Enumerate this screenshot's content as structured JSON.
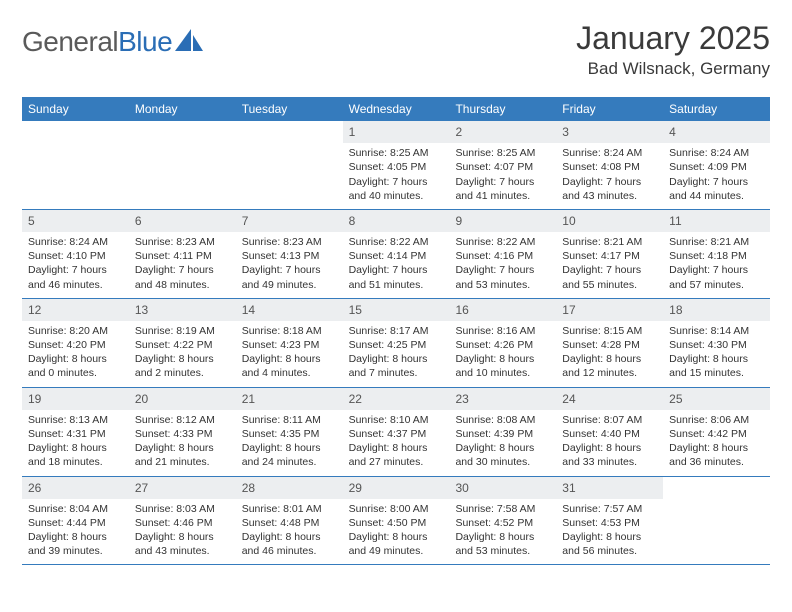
{
  "logo": {
    "g": "General",
    "b": "Blue"
  },
  "title": "January 2025",
  "location": "Bad Wilsnack, Germany",
  "colors": {
    "header_bg": "#357bbd",
    "header_text": "#ffffff",
    "daynum_bg": "#eceef0",
    "daynum_text": "#555555",
    "border": "#357bbd",
    "text": "#333333",
    "logo_gray": "#5a5a5a",
    "logo_blue": "#2a6db5"
  },
  "typography": {
    "title_fontsize": 32,
    "location_fontsize": 17,
    "weekday_fontsize": 12,
    "daynum_fontsize": 12,
    "body_fontsize": 10.5
  },
  "weekdays": [
    "Sunday",
    "Monday",
    "Tuesday",
    "Wednesday",
    "Thursday",
    "Friday",
    "Saturday"
  ],
  "weeks": [
    [
      {
        "n": "",
        "sr": "",
        "ss": "",
        "d": ""
      },
      {
        "n": "",
        "sr": "",
        "ss": "",
        "d": ""
      },
      {
        "n": "",
        "sr": "",
        "ss": "",
        "d": ""
      },
      {
        "n": "1",
        "sr": "Sunrise: 8:25 AM",
        "ss": "Sunset: 4:05 PM",
        "d": "Daylight: 7 hours and 40 minutes."
      },
      {
        "n": "2",
        "sr": "Sunrise: 8:25 AM",
        "ss": "Sunset: 4:07 PM",
        "d": "Daylight: 7 hours and 41 minutes."
      },
      {
        "n": "3",
        "sr": "Sunrise: 8:24 AM",
        "ss": "Sunset: 4:08 PM",
        "d": "Daylight: 7 hours and 43 minutes."
      },
      {
        "n": "4",
        "sr": "Sunrise: 8:24 AM",
        "ss": "Sunset: 4:09 PM",
        "d": "Daylight: 7 hours and 44 minutes."
      }
    ],
    [
      {
        "n": "5",
        "sr": "Sunrise: 8:24 AM",
        "ss": "Sunset: 4:10 PM",
        "d": "Daylight: 7 hours and 46 minutes."
      },
      {
        "n": "6",
        "sr": "Sunrise: 8:23 AM",
        "ss": "Sunset: 4:11 PM",
        "d": "Daylight: 7 hours and 48 minutes."
      },
      {
        "n": "7",
        "sr": "Sunrise: 8:23 AM",
        "ss": "Sunset: 4:13 PM",
        "d": "Daylight: 7 hours and 49 minutes."
      },
      {
        "n": "8",
        "sr": "Sunrise: 8:22 AM",
        "ss": "Sunset: 4:14 PM",
        "d": "Daylight: 7 hours and 51 minutes."
      },
      {
        "n": "9",
        "sr": "Sunrise: 8:22 AM",
        "ss": "Sunset: 4:16 PM",
        "d": "Daylight: 7 hours and 53 minutes."
      },
      {
        "n": "10",
        "sr": "Sunrise: 8:21 AM",
        "ss": "Sunset: 4:17 PM",
        "d": "Daylight: 7 hours and 55 minutes."
      },
      {
        "n": "11",
        "sr": "Sunrise: 8:21 AM",
        "ss": "Sunset: 4:18 PM",
        "d": "Daylight: 7 hours and 57 minutes."
      }
    ],
    [
      {
        "n": "12",
        "sr": "Sunrise: 8:20 AM",
        "ss": "Sunset: 4:20 PM",
        "d": "Daylight: 8 hours and 0 minutes."
      },
      {
        "n": "13",
        "sr": "Sunrise: 8:19 AM",
        "ss": "Sunset: 4:22 PM",
        "d": "Daylight: 8 hours and 2 minutes."
      },
      {
        "n": "14",
        "sr": "Sunrise: 8:18 AM",
        "ss": "Sunset: 4:23 PM",
        "d": "Daylight: 8 hours and 4 minutes."
      },
      {
        "n": "15",
        "sr": "Sunrise: 8:17 AM",
        "ss": "Sunset: 4:25 PM",
        "d": "Daylight: 8 hours and 7 minutes."
      },
      {
        "n": "16",
        "sr": "Sunrise: 8:16 AM",
        "ss": "Sunset: 4:26 PM",
        "d": "Daylight: 8 hours and 10 minutes."
      },
      {
        "n": "17",
        "sr": "Sunrise: 8:15 AM",
        "ss": "Sunset: 4:28 PM",
        "d": "Daylight: 8 hours and 12 minutes."
      },
      {
        "n": "18",
        "sr": "Sunrise: 8:14 AM",
        "ss": "Sunset: 4:30 PM",
        "d": "Daylight: 8 hours and 15 minutes."
      }
    ],
    [
      {
        "n": "19",
        "sr": "Sunrise: 8:13 AM",
        "ss": "Sunset: 4:31 PM",
        "d": "Daylight: 8 hours and 18 minutes."
      },
      {
        "n": "20",
        "sr": "Sunrise: 8:12 AM",
        "ss": "Sunset: 4:33 PM",
        "d": "Daylight: 8 hours and 21 minutes."
      },
      {
        "n": "21",
        "sr": "Sunrise: 8:11 AM",
        "ss": "Sunset: 4:35 PM",
        "d": "Daylight: 8 hours and 24 minutes."
      },
      {
        "n": "22",
        "sr": "Sunrise: 8:10 AM",
        "ss": "Sunset: 4:37 PM",
        "d": "Daylight: 8 hours and 27 minutes."
      },
      {
        "n": "23",
        "sr": "Sunrise: 8:08 AM",
        "ss": "Sunset: 4:39 PM",
        "d": "Daylight: 8 hours and 30 minutes."
      },
      {
        "n": "24",
        "sr": "Sunrise: 8:07 AM",
        "ss": "Sunset: 4:40 PM",
        "d": "Daylight: 8 hours and 33 minutes."
      },
      {
        "n": "25",
        "sr": "Sunrise: 8:06 AM",
        "ss": "Sunset: 4:42 PM",
        "d": "Daylight: 8 hours and 36 minutes."
      }
    ],
    [
      {
        "n": "26",
        "sr": "Sunrise: 8:04 AM",
        "ss": "Sunset: 4:44 PM",
        "d": "Daylight: 8 hours and 39 minutes."
      },
      {
        "n": "27",
        "sr": "Sunrise: 8:03 AM",
        "ss": "Sunset: 4:46 PM",
        "d": "Daylight: 8 hours and 43 minutes."
      },
      {
        "n": "28",
        "sr": "Sunrise: 8:01 AM",
        "ss": "Sunset: 4:48 PM",
        "d": "Daylight: 8 hours and 46 minutes."
      },
      {
        "n": "29",
        "sr": "Sunrise: 8:00 AM",
        "ss": "Sunset: 4:50 PM",
        "d": "Daylight: 8 hours and 49 minutes."
      },
      {
        "n": "30",
        "sr": "Sunrise: 7:58 AM",
        "ss": "Sunset: 4:52 PM",
        "d": "Daylight: 8 hours and 53 minutes."
      },
      {
        "n": "31",
        "sr": "Sunrise: 7:57 AM",
        "ss": "Sunset: 4:53 PM",
        "d": "Daylight: 8 hours and 56 minutes."
      },
      {
        "n": "",
        "sr": "",
        "ss": "",
        "d": ""
      }
    ]
  ]
}
